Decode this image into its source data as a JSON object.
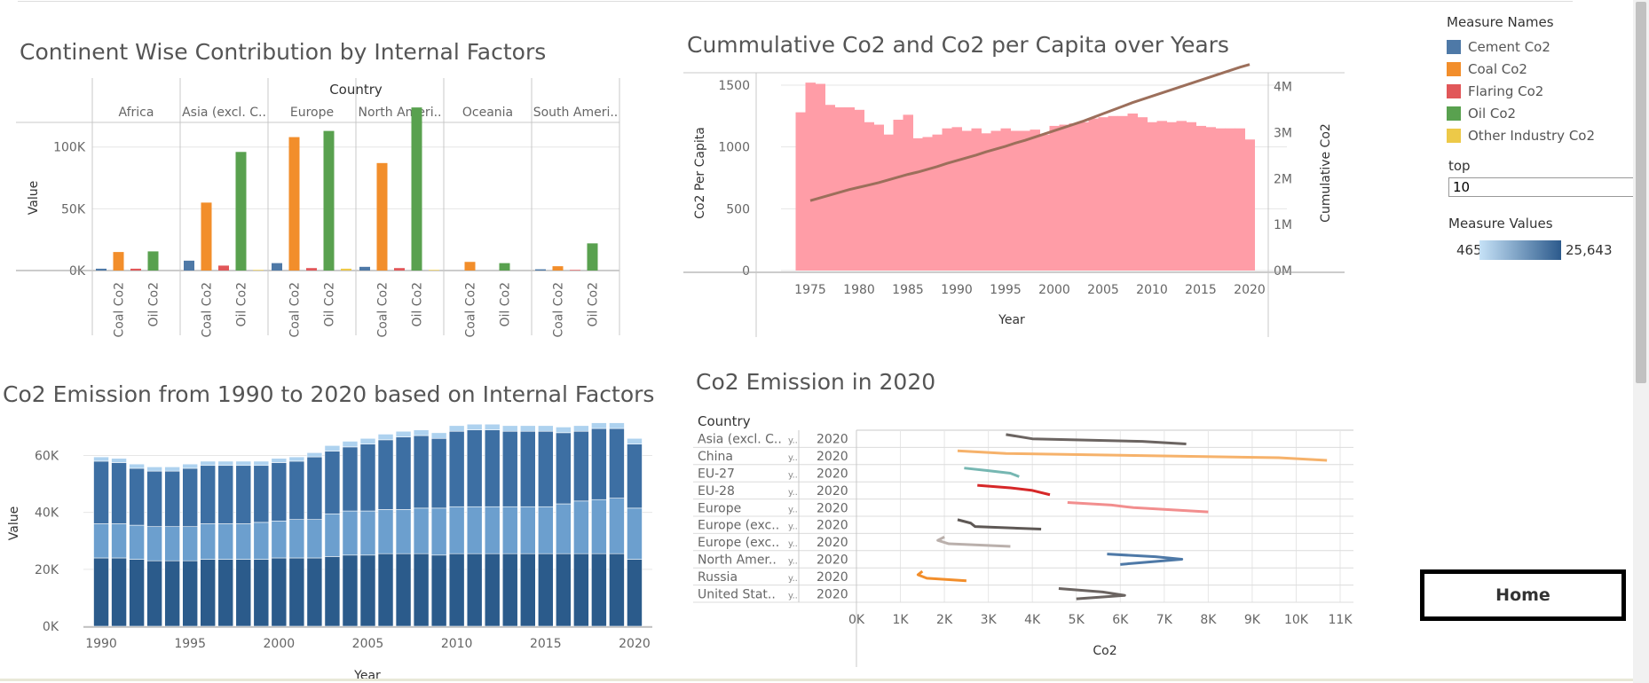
{
  "titles": {
    "continent": "Continent Wise Contribution by Internal Factors",
    "cumulative": "Cummulative Co2 and Co2 per Capita over Years",
    "stacked": "Co2 Emission from 1990 to 2020 based on Internal Factors",
    "emission2020": "Co2 Emission in 2020"
  },
  "legend": {
    "title": "Measure Names",
    "items": [
      {
        "label": "Cement Co2",
        "color": "#4e79a7"
      },
      {
        "label": "Coal Co2",
        "color": "#f28e2b"
      },
      {
        "label": "Flaring Co2",
        "color": "#e15759"
      },
      {
        "label": "Oil Co2",
        "color": "#59a14f"
      },
      {
        "label": "Other Industry Co2",
        "color": "#edc948"
      }
    ]
  },
  "filter": {
    "label": "top",
    "value": "10"
  },
  "measure_values": {
    "title": "Measure Values",
    "min": "465",
    "max": "25,643"
  },
  "home": {
    "label": "Home"
  },
  "chart_data": [
    {
      "type": "bar",
      "title": "Continent Wise Contribution by Internal Factors",
      "column_header": "Country",
      "ylabel": "Value",
      "ylim": [
        0,
        140000
      ],
      "yticks": [
        "0K",
        "50K",
        "100K"
      ],
      "measures": [
        "Cement Co2",
        "Coal Co2",
        "Flaring Co2",
        "Oil Co2",
        "Other Industry Co2"
      ],
      "bottom_labels": [
        "Coal Co2",
        "Oil Co2"
      ],
      "categories": [
        "Africa",
        "Asia (excl. C..",
        "Europe",
        "North Ameri..",
        "Oceania",
        "South Ameri.."
      ],
      "values": [
        [
          1500,
          15000,
          1500,
          15500,
          0
        ],
        [
          8000,
          55000,
          4000,
          96000,
          500
        ],
        [
          6000,
          108000,
          2000,
          113000,
          1500
        ],
        [
          3000,
          87000,
          2000,
          132000,
          500
        ],
        [
          0,
          7000,
          0,
          6000,
          0
        ],
        [
          1000,
          3500,
          500,
          22000,
          0
        ]
      ]
    },
    {
      "type": "bar+line",
      "title": "Cummulative Co2 and Co2 per Capita over Years",
      "xlabel": "Year",
      "ylabel": "Co2 Per Capita",
      "y2label": "Cumulative Co2",
      "ylim": [
        0,
        1600
      ],
      "y2lim": [
        0,
        4300000
      ],
      "yticks": [
        "0",
        "500",
        "1000",
        "1500"
      ],
      "y2ticks": [
        "0M",
        "1M",
        "2M",
        "3M",
        "4M"
      ],
      "xticks": [
        "1975",
        "1980",
        "1985",
        "1990",
        "1995",
        "2000",
        "2005",
        "2010",
        "2015",
        "2020"
      ],
      "x": [
        1974,
        1975,
        1976,
        1977,
        1978,
        1979,
        1980,
        1981,
        1982,
        1983,
        1984,
        1985,
        1986,
        1987,
        1988,
        1989,
        1990,
        1991,
        1992,
        1993,
        1994,
        1995,
        1996,
        1997,
        1998,
        1999,
        2000,
        2001,
        2002,
        2003,
        2004,
        2005,
        2006,
        2007,
        2008,
        2009,
        2010,
        2011,
        2012,
        2013,
        2014,
        2015,
        2016,
        2017,
        2018,
        2019,
        2020
      ],
      "bars": [
        1280,
        1520,
        1510,
        1340,
        1320,
        1320,
        1300,
        1200,
        1180,
        1100,
        1220,
        1260,
        1070,
        1080,
        1100,
        1150,
        1160,
        1130,
        1150,
        1110,
        1130,
        1150,
        1130,
        1130,
        1140,
        1100,
        1170,
        1180,
        1190,
        1200,
        1230,
        1240,
        1250,
        1250,
        1270,
        1240,
        1200,
        1210,
        1200,
        1210,
        1200,
        1170,
        1160,
        1150,
        1150,
        1150,
        1060
      ],
      "cumulative": [
        1450000,
        1520000,
        1580000,
        1640000,
        1700000,
        1760000,
        1810000,
        1860000,
        1910000,
        1970000,
        2030000,
        2090000,
        2140000,
        2200000,
        2260000,
        2330000,
        2390000,
        2450000,
        2510000,
        2580000,
        2640000,
        2700000,
        2770000,
        2830000,
        2900000,
        2970000,
        3040000,
        3110000,
        3180000,
        3250000,
        3330000,
        3410000,
        3490000,
        3570000,
        3650000,
        3720000,
        3790000,
        3860000,
        3930000,
        4000000,
        4070000,
        4140000,
        4210000,
        4280000,
        4350000,
        4420000,
        4480000
      ]
    },
    {
      "type": "stacked-bar",
      "title": "Co2 Emission from 1990 to 2020 based on Internal Factors",
      "xlabel": "Year",
      "ylabel": "Value",
      "ylim": [
        0,
        72000
      ],
      "yticks": [
        "0K",
        "20K",
        "40K",
        "60K"
      ],
      "xticks": [
        "1990",
        "1995",
        "2000",
        "2005",
        "2010",
        "2015",
        "2020"
      ],
      "x": [
        1990,
        1991,
        1992,
        1993,
        1994,
        1995,
        1996,
        1997,
        1998,
        1999,
        2000,
        2001,
        2002,
        2003,
        2004,
        2005,
        2006,
        2007,
        2008,
        2009,
        2010,
        2011,
        2012,
        2013,
        2014,
        2015,
        2016,
        2017,
        2018,
        2019,
        2020
      ],
      "series": [
        {
          "name": "bottom",
          "values": [
            24000,
            24000,
            23500,
            23000,
            23000,
            23000,
            23500,
            23500,
            23500,
            23500,
            24000,
            24000,
            24000,
            24500,
            25000,
            25000,
            25500,
            25500,
            25500,
            25000,
            25500,
            25500,
            25500,
            25500,
            25500,
            25500,
            25500,
            25500,
            25500,
            25500,
            23500
          ]
        },
        {
          "name": "middle",
          "values": [
            12000,
            12000,
            12000,
            12000,
            12000,
            12000,
            12500,
            12500,
            12500,
            13000,
            13000,
            13500,
            13500,
            15000,
            15500,
            15500,
            15500,
            15500,
            16000,
            16500,
            16500,
            16500,
            16500,
            16500,
            16500,
            16500,
            17500,
            18500,
            19000,
            19500,
            18000
          ]
        },
        {
          "name": "upper",
          "values": [
            22000,
            21500,
            20000,
            19500,
            19500,
            20500,
            20500,
            20500,
            20500,
            20000,
            20500,
            20500,
            22000,
            22000,
            22500,
            23500,
            24500,
            25500,
            25500,
            24500,
            26500,
            27000,
            27000,
            26500,
            26500,
            26500,
            25000,
            24500,
            25000,
            24500,
            22500
          ]
        },
        {
          "name": "top",
          "values": [
            1500,
            1500,
            1500,
            1500,
            1500,
            1500,
            1500,
            1500,
            1500,
            1500,
            1500,
            1500,
            1500,
            2000,
            2000,
            2000,
            2000,
            2000,
            2000,
            2000,
            2000,
            2000,
            2000,
            2000,
            2000,
            2000,
            2000,
            2000,
            2000,
            2000,
            2000
          ]
        }
      ]
    },
    {
      "type": "line",
      "title": "Co2 Emission in 2020",
      "row_header": "Country",
      "xlabel": "Co2",
      "xlim": [
        0,
        11000
      ],
      "xticks": [
        "0K",
        "1K",
        "2K",
        "3K",
        "4K",
        "5K",
        "6K",
        "7K",
        "8K",
        "9K",
        "10K",
        "11K"
      ],
      "rows": [
        {
          "country": "Asia (excl. C..",
          "year": "2020",
          "color": "#6b6461",
          "points": [
            [
              3400,
              -0.25
            ],
            [
              4000,
              0.0
            ],
            [
              6500,
              0.15
            ],
            [
              7500,
              0.3
            ]
          ]
        },
        {
          "country": "China",
          "year": "2020",
          "color": "#f6b26b",
          "points": [
            [
              2300,
              -0.3
            ],
            [
              3400,
              -0.15
            ],
            [
              9600,
              0.1
            ],
            [
              10700,
              0.25
            ]
          ]
        },
        {
          "country": "EU-27",
          "year": "2020",
          "color": "#76b7b2",
          "points": [
            [
              2450,
              -0.3
            ],
            [
              3000,
              -0.15
            ],
            [
              3500,
              0.0
            ],
            [
              3700,
              0.2
            ]
          ]
        },
        {
          "country": "EU-28",
          "year": "2020",
          "color": "#d62728",
          "points": [
            [
              2750,
              -0.3
            ],
            [
              3500,
              -0.15
            ],
            [
              4000,
              0.0
            ],
            [
              4400,
              0.25
            ]
          ]
        },
        {
          "country": "Europe",
          "year": "2020",
          "color": "#f28e8e",
          "points": [
            [
              4800,
              -0.3
            ],
            [
              5800,
              -0.15
            ],
            [
              6300,
              0.0
            ],
            [
              8000,
              0.25
            ]
          ]
        },
        {
          "country": "Europe (exc..",
          "year": "2020",
          "color": "#5e5855",
          "points": [
            [
              2300,
              -0.3
            ],
            [
              2600,
              -0.1
            ],
            [
              2700,
              0.1
            ],
            [
              4200,
              0.25
            ]
          ]
        },
        {
          "country": "Europe (exc..",
          "year": "2020",
          "color": "#bab0ac",
          "points": [
            [
              2000,
              -0.3
            ],
            [
              1850,
              -0.1
            ],
            [
              2100,
              0.1
            ],
            [
              3500,
              0.25
            ]
          ]
        },
        {
          "country": "North Amer..",
          "year": "2020",
          "color": "#4e79a7",
          "points": [
            [
              5700,
              -0.3
            ],
            [
              6800,
              -0.15
            ],
            [
              7400,
              0.0
            ],
            [
              6000,
              0.3
            ]
          ]
        },
        {
          "country": "Russia",
          "year": "2020",
          "color": "#f28e2b",
          "points": [
            [
              1500,
              -0.3
            ],
            [
              1400,
              -0.1
            ],
            [
              1600,
              0.1
            ],
            [
              2500,
              0.25
            ]
          ]
        },
        {
          "country": "United Stat..",
          "year": "2020",
          "color": "#6b6461",
          "points": [
            [
              4600,
              -0.3
            ],
            [
              5600,
              -0.1
            ],
            [
              6100,
              0.1
            ],
            [
              5000,
              0.3
            ]
          ]
        }
      ]
    }
  ]
}
